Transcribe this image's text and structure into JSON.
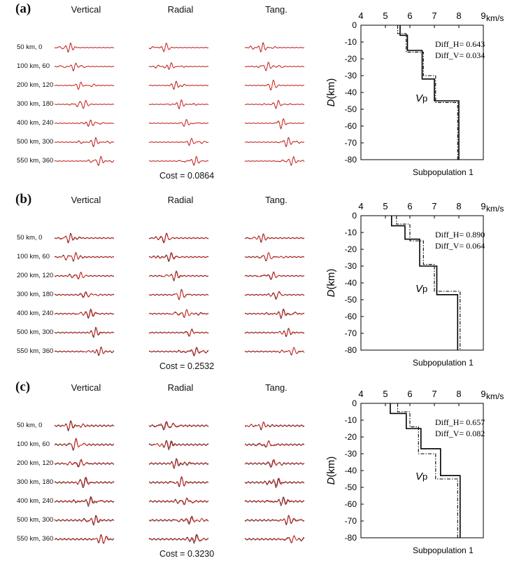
{
  "columns": [
    "Vertical",
    "Radial",
    "Tang."
  ],
  "rows": [
    "50 km, 0",
    "100 km, 60",
    "200 km, 120",
    "300 km, 180",
    "400 km, 240",
    "500 km, 300",
    "550 km, 360"
  ],
  "trace_colors": {
    "observed": "#222222",
    "synthetic": "#e0231e"
  },
  "panels": [
    {
      "label": "(a)",
      "cost": "Cost = 0.0864",
      "diff_h": "Diff_H= 0.643",
      "diff_v": "Diff_V= 0.034",
      "vp_label": "V",
      "vp_sub": "p",
      "subpop": "Subpopulation 1"
    },
    {
      "label": "(b)",
      "cost": "Cost = 0.2532",
      "diff_h": "Diff_H= 0.890",
      "diff_v": "Diff_V= 0.064",
      "vp_label": "V",
      "vp_sub": "p",
      "subpop": "Subpopulation 1"
    },
    {
      "label": "(c)",
      "cost": "Cost = 0.3230",
      "diff_h": "Diff_H= 0.657",
      "diff_v": "Diff_V= 0.082",
      "vp_label": "V",
      "vp_sub": "p",
      "subpop": "Subpopulation 1"
    }
  ],
  "chart_data": [
    {
      "type": "line",
      "panel": "(a)",
      "x_axis": {
        "ticks": [
          4,
          5,
          6,
          7,
          8,
          9
        ],
        "unit": "km/s",
        "range": [
          4,
          9
        ],
        "position": "top"
      },
      "y_axis": {
        "ticks": [
          0,
          -10,
          -20,
          -30,
          -40,
          -50,
          -60,
          -70,
          -80
        ],
        "label": "D",
        "unit": "(km)",
        "range": [
          -80,
          0
        ]
      },
      "series": [
        {
          "style": "solid",
          "steps": [
            [
              5.6,
              0
            ],
            [
              5.6,
              -6
            ],
            [
              5.9,
              -6
            ],
            [
              5.9,
              -15
            ],
            [
              6.5,
              -15
            ],
            [
              6.5,
              -32
            ],
            [
              7.0,
              -32
            ],
            [
              7.0,
              -45
            ],
            [
              8.0,
              -45
            ],
            [
              8.0,
              -80
            ]
          ]
        },
        {
          "style": "dashdot",
          "steps": [
            [
              5.5,
              0
            ],
            [
              5.5,
              -5
            ],
            [
              5.85,
              -5
            ],
            [
              5.85,
              -16
            ],
            [
              6.55,
              -16
            ],
            [
              6.55,
              -30
            ],
            [
              7.05,
              -30
            ],
            [
              7.05,
              -46
            ],
            [
              7.95,
              -46
            ],
            [
              7.95,
              -80
            ]
          ]
        }
      ]
    },
    {
      "type": "line",
      "panel": "(b)",
      "x_axis": {
        "ticks": [
          4,
          5,
          6,
          7,
          8,
          9
        ],
        "unit": "km/s",
        "range": [
          4,
          9
        ],
        "position": "top"
      },
      "y_axis": {
        "ticks": [
          0,
          -10,
          -20,
          -30,
          -40,
          -50,
          -60,
          -70,
          -80
        ],
        "label": "D",
        "unit": "(km)",
        "range": [
          -80,
          0
        ]
      },
      "series": [
        {
          "style": "solid",
          "steps": [
            [
              5.25,
              0
            ],
            [
              5.25,
              -6
            ],
            [
              5.8,
              -6
            ],
            [
              5.8,
              -14
            ],
            [
              6.4,
              -14
            ],
            [
              6.4,
              -30
            ],
            [
              7.1,
              -30
            ],
            [
              7.1,
              -47
            ],
            [
              7.95,
              -47
            ],
            [
              7.95,
              -80
            ]
          ]
        },
        {
          "style": "dashdot",
          "steps": [
            [
              5.45,
              0
            ],
            [
              5.45,
              -5
            ],
            [
              6.0,
              -5
            ],
            [
              6.0,
              -15
            ],
            [
              6.55,
              -15
            ],
            [
              6.55,
              -29
            ],
            [
              7.0,
              -29
            ],
            [
              7.0,
              -45
            ],
            [
              8.05,
              -45
            ],
            [
              8.05,
              -80
            ]
          ]
        }
      ]
    },
    {
      "type": "line",
      "panel": "(c)",
      "x_axis": {
        "ticks": [
          4,
          5,
          6,
          7,
          8,
          9
        ],
        "unit": "km/s",
        "range": [
          4,
          9
        ],
        "position": "top"
      },
      "y_axis": {
        "ticks": [
          0,
          -10,
          -20,
          -30,
          -40,
          -50,
          -60,
          -70,
          -80
        ],
        "label": "D",
        "unit": "(km)",
        "range": [
          -80,
          0
        ]
      },
      "series": [
        {
          "style": "solid",
          "steps": [
            [
              5.2,
              0
            ],
            [
              5.2,
              -6
            ],
            [
              5.85,
              -6
            ],
            [
              5.85,
              -15
            ],
            [
              6.45,
              -15
            ],
            [
              6.45,
              -27
            ],
            [
              7.25,
              -27
            ],
            [
              7.25,
              -43
            ],
            [
              8.05,
              -43
            ],
            [
              8.05,
              -80
            ]
          ]
        },
        {
          "style": "dashdot",
          "steps": [
            [
              5.5,
              0
            ],
            [
              5.5,
              -5
            ],
            [
              6.0,
              -5
            ],
            [
              6.0,
              -14
            ],
            [
              6.35,
              -14
            ],
            [
              6.35,
              -30
            ],
            [
              7.05,
              -30
            ],
            [
              7.05,
              -45
            ],
            [
              7.95,
              -45
            ],
            [
              7.95,
              -80
            ]
          ]
        }
      ]
    }
  ]
}
